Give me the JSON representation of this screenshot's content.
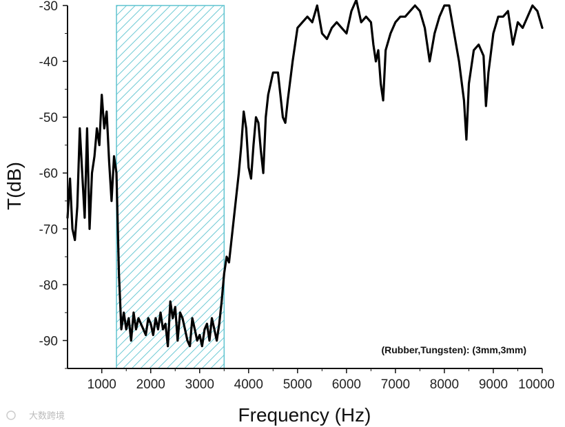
{
  "chart_data": {
    "type": "line",
    "title": "",
    "xlabel": "Frequency (Hz)",
    "ylabel": "T(dB)",
    "xlim": [
      300,
      10000
    ],
    "ylim": [
      -95,
      -30
    ],
    "x_ticks": [
      1000,
      2000,
      3000,
      4000,
      5000,
      6000,
      7000,
      8000,
      9000,
      10000
    ],
    "x_tick_labels": [
      "1000",
      "2000",
      "3000",
      "4000",
      "5000",
      "6000",
      "7000",
      "8000",
      "9000",
      "10000"
    ],
    "y_ticks": [
      -90,
      -80,
      -70,
      -60,
      -50,
      -40,
      -30
    ],
    "y_tick_labels": [
      "-90",
      "-80",
      "-70",
      "-60",
      "-50",
      "-40",
      "-30"
    ],
    "grid": false,
    "band_gap": {
      "x_start": 1300,
      "x_end": 3500,
      "fill_color": "#7fd3dc",
      "hatch": "diagonal"
    },
    "annotation": "(Rubber,Tungsten): (3mm,3mm)",
    "series": [
      {
        "color": "#000000",
        "x": [
          300,
          350,
          400,
          450,
          500,
          550,
          600,
          650,
          700,
          750,
          800,
          850,
          900,
          950,
          1000,
          1050,
          1100,
          1150,
          1200,
          1250,
          1300,
          1350,
          1400,
          1450,
          1500,
          1550,
          1600,
          1650,
          1700,
          1750,
          1800,
          1850,
          1900,
          1950,
          2000,
          2050,
          2100,
          2150,
          2200,
          2250,
          2300,
          2350,
          2400,
          2450,
          2500,
          2550,
          2600,
          2650,
          2700,
          2750,
          2800,
          2850,
          2900,
          2950,
          3000,
          3050,
          3100,
          3150,
          3200,
          3250,
          3300,
          3350,
          3400,
          3450,
          3500,
          3550,
          3600,
          3700,
          3800,
          3850,
          3900,
          3950,
          4000,
          4050,
          4100,
          4150,
          4200,
          4250,
          4300,
          4350,
          4400,
          4500,
          4600,
          4700,
          4750,
          4800,
          4900,
          5000,
          5100,
          5200,
          5300,
          5400,
          5500,
          5600,
          5700,
          5800,
          5900,
          6000,
          6100,
          6200,
          6300,
          6400,
          6500,
          6550,
          6600,
          6650,
          6700,
          6750,
          6800,
          6900,
          7000,
          7100,
          7200,
          7300,
          7400,
          7500,
          7600,
          7700,
          7800,
          7900,
          8000,
          8100,
          8200,
          8300,
          8400,
          8450,
          8500,
          8600,
          8700,
          8800,
          8850,
          8900,
          9000,
          9100,
          9200,
          9300,
          9400,
          9500,
          9600,
          9700,
          9800,
          9900,
          10000
        ],
        "y": [
          -68,
          -61,
          -70,
          -72,
          -66,
          -52,
          -60,
          -68,
          -52,
          -70,
          -60,
          -57,
          -52,
          -55,
          -46,
          -52,
          -49,
          -58,
          -65,
          -57,
          -60,
          -78,
          -88,
          -85,
          -88,
          -86,
          -90,
          -85,
          -88,
          -86,
          -87,
          -88,
          -89,
          -86,
          -87,
          -89,
          -86,
          -88,
          -85,
          -88,
          -87,
          -91,
          -83,
          -86,
          -84,
          -90,
          -85,
          -86,
          -88,
          -90,
          -91,
          -86,
          -88,
          -90,
          -89,
          -91,
          -88,
          -87,
          -90,
          -86,
          -88,
          -90,
          -87,
          -83,
          -78,
          -75,
          -76,
          -68,
          -60,
          -55,
          -49,
          -52,
          -59,
          -61,
          -55,
          -50,
          -51,
          -56,
          -60,
          -50,
          -46,
          -42,
          -42,
          -50,
          -51,
          -47,
          -40,
          -34,
          -33,
          -32,
          -33,
          -30,
          -35,
          -36,
          -34,
          -33,
          -34,
          -35,
          -31,
          -29,
          -33,
          -32,
          -33,
          -37,
          -40,
          -38,
          -44,
          -47,
          -38,
          -35,
          -33,
          -32,
          -32,
          -31,
          -30,
          -31,
          -34,
          -40,
          -35,
          -32,
          -30,
          -30,
          -35,
          -40,
          -47,
          -54,
          -44,
          -38,
          -37,
          -39,
          -48,
          -42,
          -35,
          -32,
          -32,
          -31,
          -37,
          -33,
          -34,
          -32,
          -30,
          -31,
          -34
        ]
      }
    ]
  },
  "watermark": "大数跨境"
}
